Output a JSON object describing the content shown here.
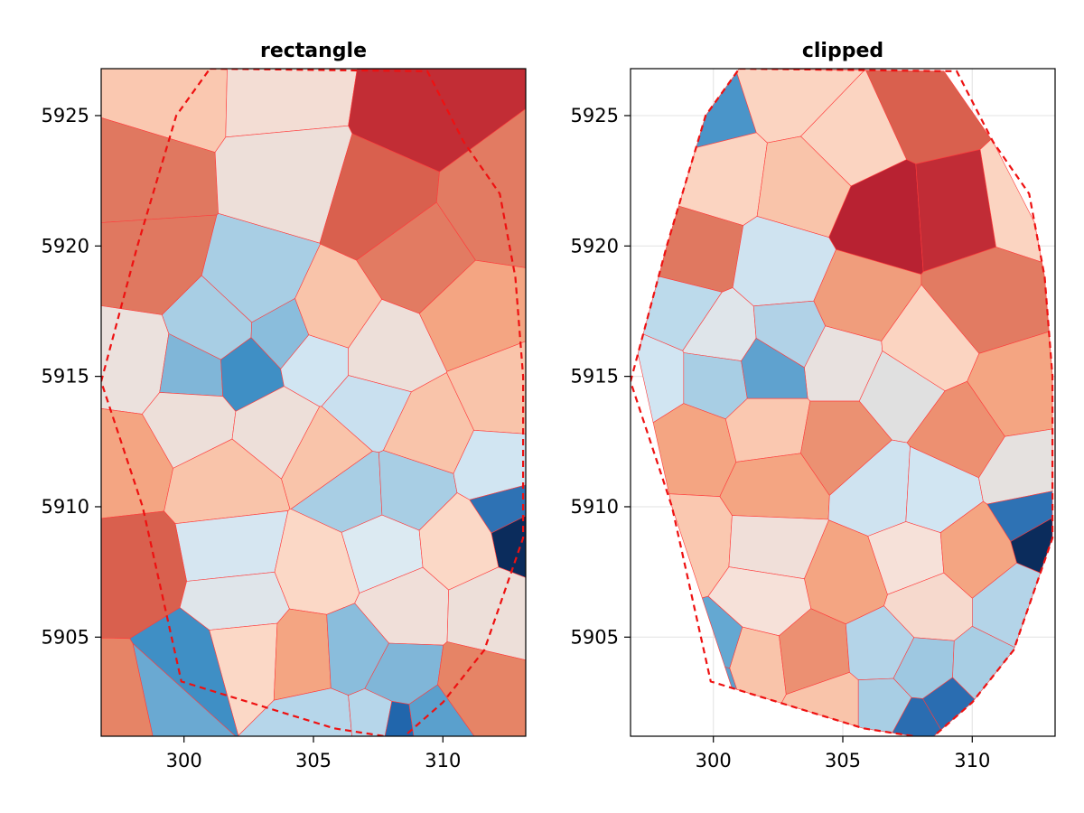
{
  "chart_data": [
    {
      "type": "voronoi",
      "title": "rectangle",
      "xlim": [
        296.8,
        313.2
      ],
      "ylim": [
        5901.2,
        5926.8
      ],
      "xticks": [
        300,
        305,
        310
      ],
      "yticks": [
        5905,
        5910,
        5915,
        5920,
        5925
      ],
      "grid": false,
      "clip": "rectangle",
      "colormap": "RdBu (reversed)",
      "seeds": [
        {
          "x": 299.4,
          "y": 5926.1,
          "color": "#fac8b0"
        },
        {
          "x": 303.9,
          "y": 5926.0,
          "color": "#f3ddd4"
        },
        {
          "x": 309.1,
          "y": 5925.2,
          "color": "#c22d35"
        },
        {
          "x": 298.3,
          "y": 5922.5,
          "color": "#e07860"
        },
        {
          "x": 304.2,
          "y": 5922.8,
          "color": "#eddfd9"
        },
        {
          "x": 307.6,
          "y": 5921.8,
          "color": "#d9604e"
        },
        {
          "x": 311.9,
          "y": 5921.4,
          "color": "#e27b62"
        },
        {
          "x": 298.5,
          "y": 5919.5,
          "color": "#e07860"
        },
        {
          "x": 302.9,
          "y": 5918.4,
          "color": "#a8cee4"
        },
        {
          "x": 309.2,
          "y": 5919.6,
          "color": "#e27b62"
        },
        {
          "x": 301.3,
          "y": 5916.7,
          "color": "#a8cee4"
        },
        {
          "x": 303.9,
          "y": 5916.6,
          "color": "#8abddc"
        },
        {
          "x": 305.5,
          "y": 5917.2,
          "color": "#f9c4aa"
        },
        {
          "x": 311.3,
          "y": 5917.4,
          "color": "#f4a582"
        },
        {
          "x": 297.9,
          "y": 5915.5,
          "color": "#ebe1dd"
        },
        {
          "x": 300.5,
          "y": 5915.1,
          "color": "#80b6d8"
        },
        {
          "x": 302.4,
          "y": 5915.2,
          "color": "#3f8fc5"
        },
        {
          "x": 305.0,
          "y": 5915.7,
          "color": "#d1e5f2"
        },
        {
          "x": 307.7,
          "y": 5915.7,
          "color": "#eddfd9"
        },
        {
          "x": 312.5,
          "y": 5914.3,
          "color": "#f9c4aa"
        },
        {
          "x": 300.4,
          "y": 5913.5,
          "color": "#eddfd9"
        },
        {
          "x": 307.2,
          "y": 5913.8,
          "color": "#c9e0ef"
        },
        {
          "x": 303.5,
          "y": 5913.1,
          "color": "#eddfd9"
        },
        {
          "x": 305.6,
          "y": 5912.0,
          "color": "#f9c4aa"
        },
        {
          "x": 309.3,
          "y": 5912.8,
          "color": "#f9c4aa"
        },
        {
          "x": 297.4,
          "y": 5911.8,
          "color": "#f4a582"
        },
        {
          "x": 301.7,
          "y": 5910.9,
          "color": "#f9c4aa"
        },
        {
          "x": 306.6,
          "y": 5910.6,
          "color": "#a8cee4"
        },
        {
          "x": 308.6,
          "y": 5910.7,
          "color": "#a8cee4"
        },
        {
          "x": 312.3,
          "y": 5911.4,
          "color": "#d1e5f2"
        },
        {
          "x": 312.7,
          "y": 5909.9,
          "color": "#2e72b4"
        },
        {
          "x": 313.1,
          "y": 5909.1,
          "color": "#0b2c5c"
        },
        {
          "x": 302.0,
          "y": 5908.3,
          "color": "#d6e6f1"
        },
        {
          "x": 305.2,
          "y": 5907.6,
          "color": "#fbd8c6"
        },
        {
          "x": 307.6,
          "y": 5908.3,
          "color": "#dceaf2"
        },
        {
          "x": 310.7,
          "y": 5908.6,
          "color": "#fbd8c6"
        },
        {
          "x": 297.9,
          "y": 5907.5,
          "color": "#d9604e"
        },
        {
          "x": 302.2,
          "y": 5906.4,
          "color": "#dfe5ea"
        },
        {
          "x": 308.5,
          "y": 5906.1,
          "color": "#f0dfd9"
        },
        {
          "x": 311.9,
          "y": 5906.0,
          "color": "#eddfd9"
        },
        {
          "x": 302.4,
          "y": 5904.4,
          "color": "#fbd8c6"
        },
        {
          "x": 304.7,
          "y": 5904.3,
          "color": "#f4a582"
        },
        {
          "x": 306.5,
          "y": 5904.4,
          "color": "#8abddc"
        },
        {
          "x": 308.4,
          "y": 5903.4,
          "color": "#80b6d8"
        },
        {
          "x": 300.2,
          "y": 5903.8,
          "color": "#3f8fc5"
        },
        {
          "x": 299.2,
          "y": 5902.7,
          "color": "#6aa9d2"
        },
        {
          "x": 297.8,
          "y": 5902.4,
          "color": "#e68466"
        },
        {
          "x": 311.2,
          "y": 5903.0,
          "color": "#e68466"
        },
        {
          "x": 305.3,
          "y": 5901.5,
          "color": "#b6d6ea"
        },
        {
          "x": 307.6,
          "y": 5901.7,
          "color": "#b6d6ea"
        },
        {
          "x": 308.1,
          "y": 5901.6,
          "color": "#2166ac"
        },
        {
          "x": 309.5,
          "y": 5901.8,
          "color": "#5aa0cd"
        }
      ],
      "hull": [
        [
          301.0,
          5926.8
        ],
        [
          309.4,
          5926.7
        ],
        [
          310.8,
          5924.0
        ],
        [
          312.2,
          5922.0
        ],
        [
          312.8,
          5918.8
        ],
        [
          313.1,
          5915.0
        ],
        [
          313.1,
          5908.8
        ],
        [
          311.6,
          5904.5
        ],
        [
          310.0,
          5902.5
        ],
        [
          308.4,
          5901.1
        ],
        [
          305.8,
          5901.5
        ],
        [
          299.9,
          5903.3
        ],
        [
          298.4,
          5910.0
        ],
        [
          296.8,
          5914.8
        ],
        [
          298.2,
          5920.0
        ],
        [
          299.7,
          5925.0
        ]
      ]
    },
    {
      "type": "voronoi",
      "title": "clipped",
      "xlim": [
        296.8,
        313.2
      ],
      "ylim": [
        5901.2,
        5926.8
      ],
      "xticks": [
        300,
        305,
        310
      ],
      "yticks": [
        5905,
        5910,
        5915,
        5920,
        5925
      ],
      "grid": true,
      "clip": "convex hull",
      "colormap": "RdBu (reversed)",
      "seeds": [
        {
          "x": 299.6,
          "y": 5924.9,
          "color": "#4a95c9"
        },
        {
          "x": 303.0,
          "y": 5926.0,
          "color": "#fbd4c1"
        },
        {
          "x": 308.5,
          "y": 5925.4,
          "color": "#d9604e"
        },
        {
          "x": 300.1,
          "y": 5922.9,
          "color": "#fbd4c1"
        },
        {
          "x": 303.7,
          "y": 5922.4,
          "color": "#f9c4aa"
        },
        {
          "x": 305.2,
          "y": 5923.9,
          "color": "#fbd4c1"
        },
        {
          "x": 306.5,
          "y": 5921.2,
          "color": "#b82232"
        },
        {
          "x": 309.4,
          "y": 5921.4,
          "color": "#c12c36"
        },
        {
          "x": 311.9,
          "y": 5921.8,
          "color": "#fbd4c1"
        },
        {
          "x": 299.1,
          "y": 5919.6,
          "color": "#e07860"
        },
        {
          "x": 302.7,
          "y": 5919.0,
          "color": "#cfe3f0"
        },
        {
          "x": 305.5,
          "y": 5917.8,
          "color": "#f09d7c"
        },
        {
          "x": 310.6,
          "y": 5917.9,
          "color": "#e27b62"
        },
        {
          "x": 298.6,
          "y": 5917.6,
          "color": "#bcdaeb"
        },
        {
          "x": 300.4,
          "y": 5916.4,
          "color": "#dfe5ea"
        },
        {
          "x": 302.9,
          "y": 5916.6,
          "color": "#b1d2e7"
        },
        {
          "x": 304.9,
          "y": 5915.6,
          "color": "#e8e1df"
        },
        {
          "x": 308.2,
          "y": 5915.9,
          "color": "#fbd4c1"
        },
        {
          "x": 297.5,
          "y": 5915.0,
          "color": "#d1e5f2"
        },
        {
          "x": 300.2,
          "y": 5915.0,
          "color": "#a8cee4"
        },
        {
          "x": 302.1,
          "y": 5915.3,
          "color": "#5fa2cf"
        },
        {
          "x": 307.3,
          "y": 5914.5,
          "color": "#e0e0e0"
        },
        {
          "x": 311.7,
          "y": 5914.4,
          "color": "#f4a582"
        },
        {
          "x": 299.2,
          "y": 5912.3,
          "color": "#f4a582"
        },
        {
          "x": 302.1,
          "y": 5913.0,
          "color": "#fac8b0"
        },
        {
          "x": 304.9,
          "y": 5912.5,
          "color": "#eb9172"
        },
        {
          "x": 309.5,
          "y": 5912.9,
          "color": "#ed9071"
        },
        {
          "x": 302.4,
          "y": 5910.8,
          "color": "#f4a582"
        },
        {
          "x": 306.6,
          "y": 5910.6,
          "color": "#cfe3f0"
        },
        {
          "x": 308.4,
          "y": 5910.5,
          "color": "#d1e5f2"
        },
        {
          "x": 312.2,
          "y": 5911.2,
          "color": "#e5e1df"
        },
        {
          "x": 312.5,
          "y": 5909.7,
          "color": "#2e72b4"
        },
        {
          "x": 312.9,
          "y": 5909.0,
          "color": "#0b2c5c"
        },
        {
          "x": 299.0,
          "y": 5908.6,
          "color": "#fac8b0"
        },
        {
          "x": 302.3,
          "y": 5908.4,
          "color": "#f0dfd9"
        },
        {
          "x": 305.2,
          "y": 5907.2,
          "color": "#f4a582"
        },
        {
          "x": 307.6,
          "y": 5908.0,
          "color": "#f6e1d9"
        },
        {
          "x": 310.1,
          "y": 5908.2,
          "color": "#f4a582"
        },
        {
          "x": 302.0,
          "y": 5906.5,
          "color": "#f6e1d9"
        },
        {
          "x": 308.3,
          "y": 5906.2,
          "color": "#f6d9cd"
        },
        {
          "x": 311.7,
          "y": 5906.2,
          "color": "#b4d4e8"
        },
        {
          "x": 301.4,
          "y": 5904.0,
          "color": "#f9c4aa"
        },
        {
          "x": 303.9,
          "y": 5904.3,
          "color": "#ec9072"
        },
        {
          "x": 306.5,
          "y": 5904.5,
          "color": "#b4d4e8"
        },
        {
          "x": 308.1,
          "y": 5903.7,
          "color": "#9ec8e1"
        },
        {
          "x": 300.1,
          "y": 5904.4,
          "color": "#64a8d2"
        },
        {
          "x": 299.9,
          "y": 5903.5,
          "color": "#5aa0cd"
        },
        {
          "x": 299.7,
          "y": 5903.2,
          "color": "#154b8c"
        },
        {
          "x": 310.4,
          "y": 5903.6,
          "color": "#a8cee4"
        },
        {
          "x": 304.6,
          "y": 5902.3,
          "color": "#f9c4aa"
        },
        {
          "x": 306.6,
          "y": 5902.3,
          "color": "#a8cee4"
        },
        {
          "x": 307.9,
          "y": 5901.6,
          "color": "#2a6db1"
        },
        {
          "x": 309.1,
          "y": 5902.3,
          "color": "#2a6db1"
        }
      ],
      "hull": [
        [
          301.0,
          5926.8
        ],
        [
          309.4,
          5926.7
        ],
        [
          310.8,
          5924.0
        ],
        [
          312.2,
          5922.0
        ],
        [
          312.8,
          5918.8
        ],
        [
          313.1,
          5915.0
        ],
        [
          313.1,
          5908.8
        ],
        [
          311.6,
          5904.5
        ],
        [
          310.0,
          5902.5
        ],
        [
          308.4,
          5901.1
        ],
        [
          305.8,
          5901.5
        ],
        [
          299.9,
          5903.3
        ],
        [
          298.4,
          5910.0
        ],
        [
          296.8,
          5914.8
        ],
        [
          298.2,
          5920.0
        ],
        [
          299.7,
          5925.0
        ]
      ]
    }
  ]
}
